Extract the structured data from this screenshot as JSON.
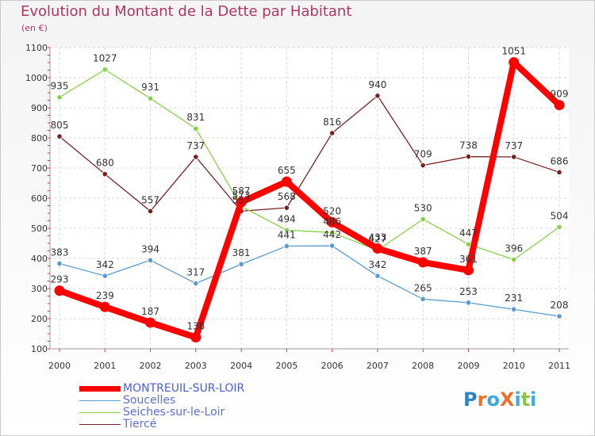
{
  "title": "Evolution du Montant de la Dette par Habitant",
  "subtitle": "(en €)",
  "logo": {
    "text": "ProXiti",
    "colors": [
      "#2f84c8",
      "#e8742c",
      "#3da9d8",
      "#e8742c",
      "#3da9d8",
      "#8cc63f",
      "#3da9d8"
    ]
  },
  "legend": [
    {
      "label": "MONTREUIL-SUR-LOIR",
      "color": "#ff0000"
    },
    {
      "label": "Soucelles",
      "color": "#5a9bd0"
    },
    {
      "label": "Seiches-sur-le-Loir",
      "color": "#88d048"
    },
    {
      "label": "Tiercé",
      "color": "#7a2020"
    }
  ],
  "chart_data": {
    "type": "line",
    "x": [
      "2000",
      "2001",
      "2002",
      "2003",
      "2004",
      "2005",
      "2006",
      "2007",
      "2008",
      "2009",
      "2010",
      "2011"
    ],
    "ylim": [
      100,
      1100
    ],
    "yticks": [
      "100",
      "200",
      "300",
      "400",
      "500",
      "600",
      "700",
      "800",
      "900",
      "1000",
      "1100"
    ],
    "grid": true,
    "series": [
      {
        "name": "Tiercé",
        "color": "#7a2020",
        "values": [
          805,
          680,
          557,
          737,
          557,
          568,
          816,
          940,
          709,
          738,
          737,
          686
        ],
        "labels": [
          "805",
          "680",
          "557",
          "737",
          "557",
          "568",
          "816",
          "940",
          "709",
          "738",
          "737",
          "686"
        ]
      },
      {
        "name": "Seiches-sur-le-Loir",
        "color": "#88d048",
        "values": [
          935,
          1027,
          931,
          831,
          573,
          494,
          486,
          427,
          530,
          447,
          396,
          504
        ],
        "labels": [
          "935",
          "1027",
          "931",
          "831",
          "573",
          "494",
          "486",
          "427",
          "530",
          "447",
          "396",
          "504"
        ]
      },
      {
        "name": "Soucelles",
        "color": "#5a9bd0",
        "values": [
          383,
          342,
          394,
          317,
          381,
          441,
          442,
          342,
          265,
          253,
          231,
          208
        ],
        "labels": [
          "383",
          "342",
          "394",
          "317",
          "381",
          "441",
          "442",
          "342",
          "265",
          "253",
          "231",
          "208"
        ]
      },
      {
        "name": "MONTREUIL-SUR-LOIR",
        "color": "#ff0000",
        "values": [
          293,
          239,
          187,
          138,
          587,
          655,
          520,
          433,
          387,
          361,
          1051,
          909
        ],
        "labels": [
          "293",
          "239",
          "187",
          "138",
          "587",
          "655",
          "520",
          "433",
          "387",
          "361",
          "1051",
          "909"
        ]
      }
    ]
  }
}
